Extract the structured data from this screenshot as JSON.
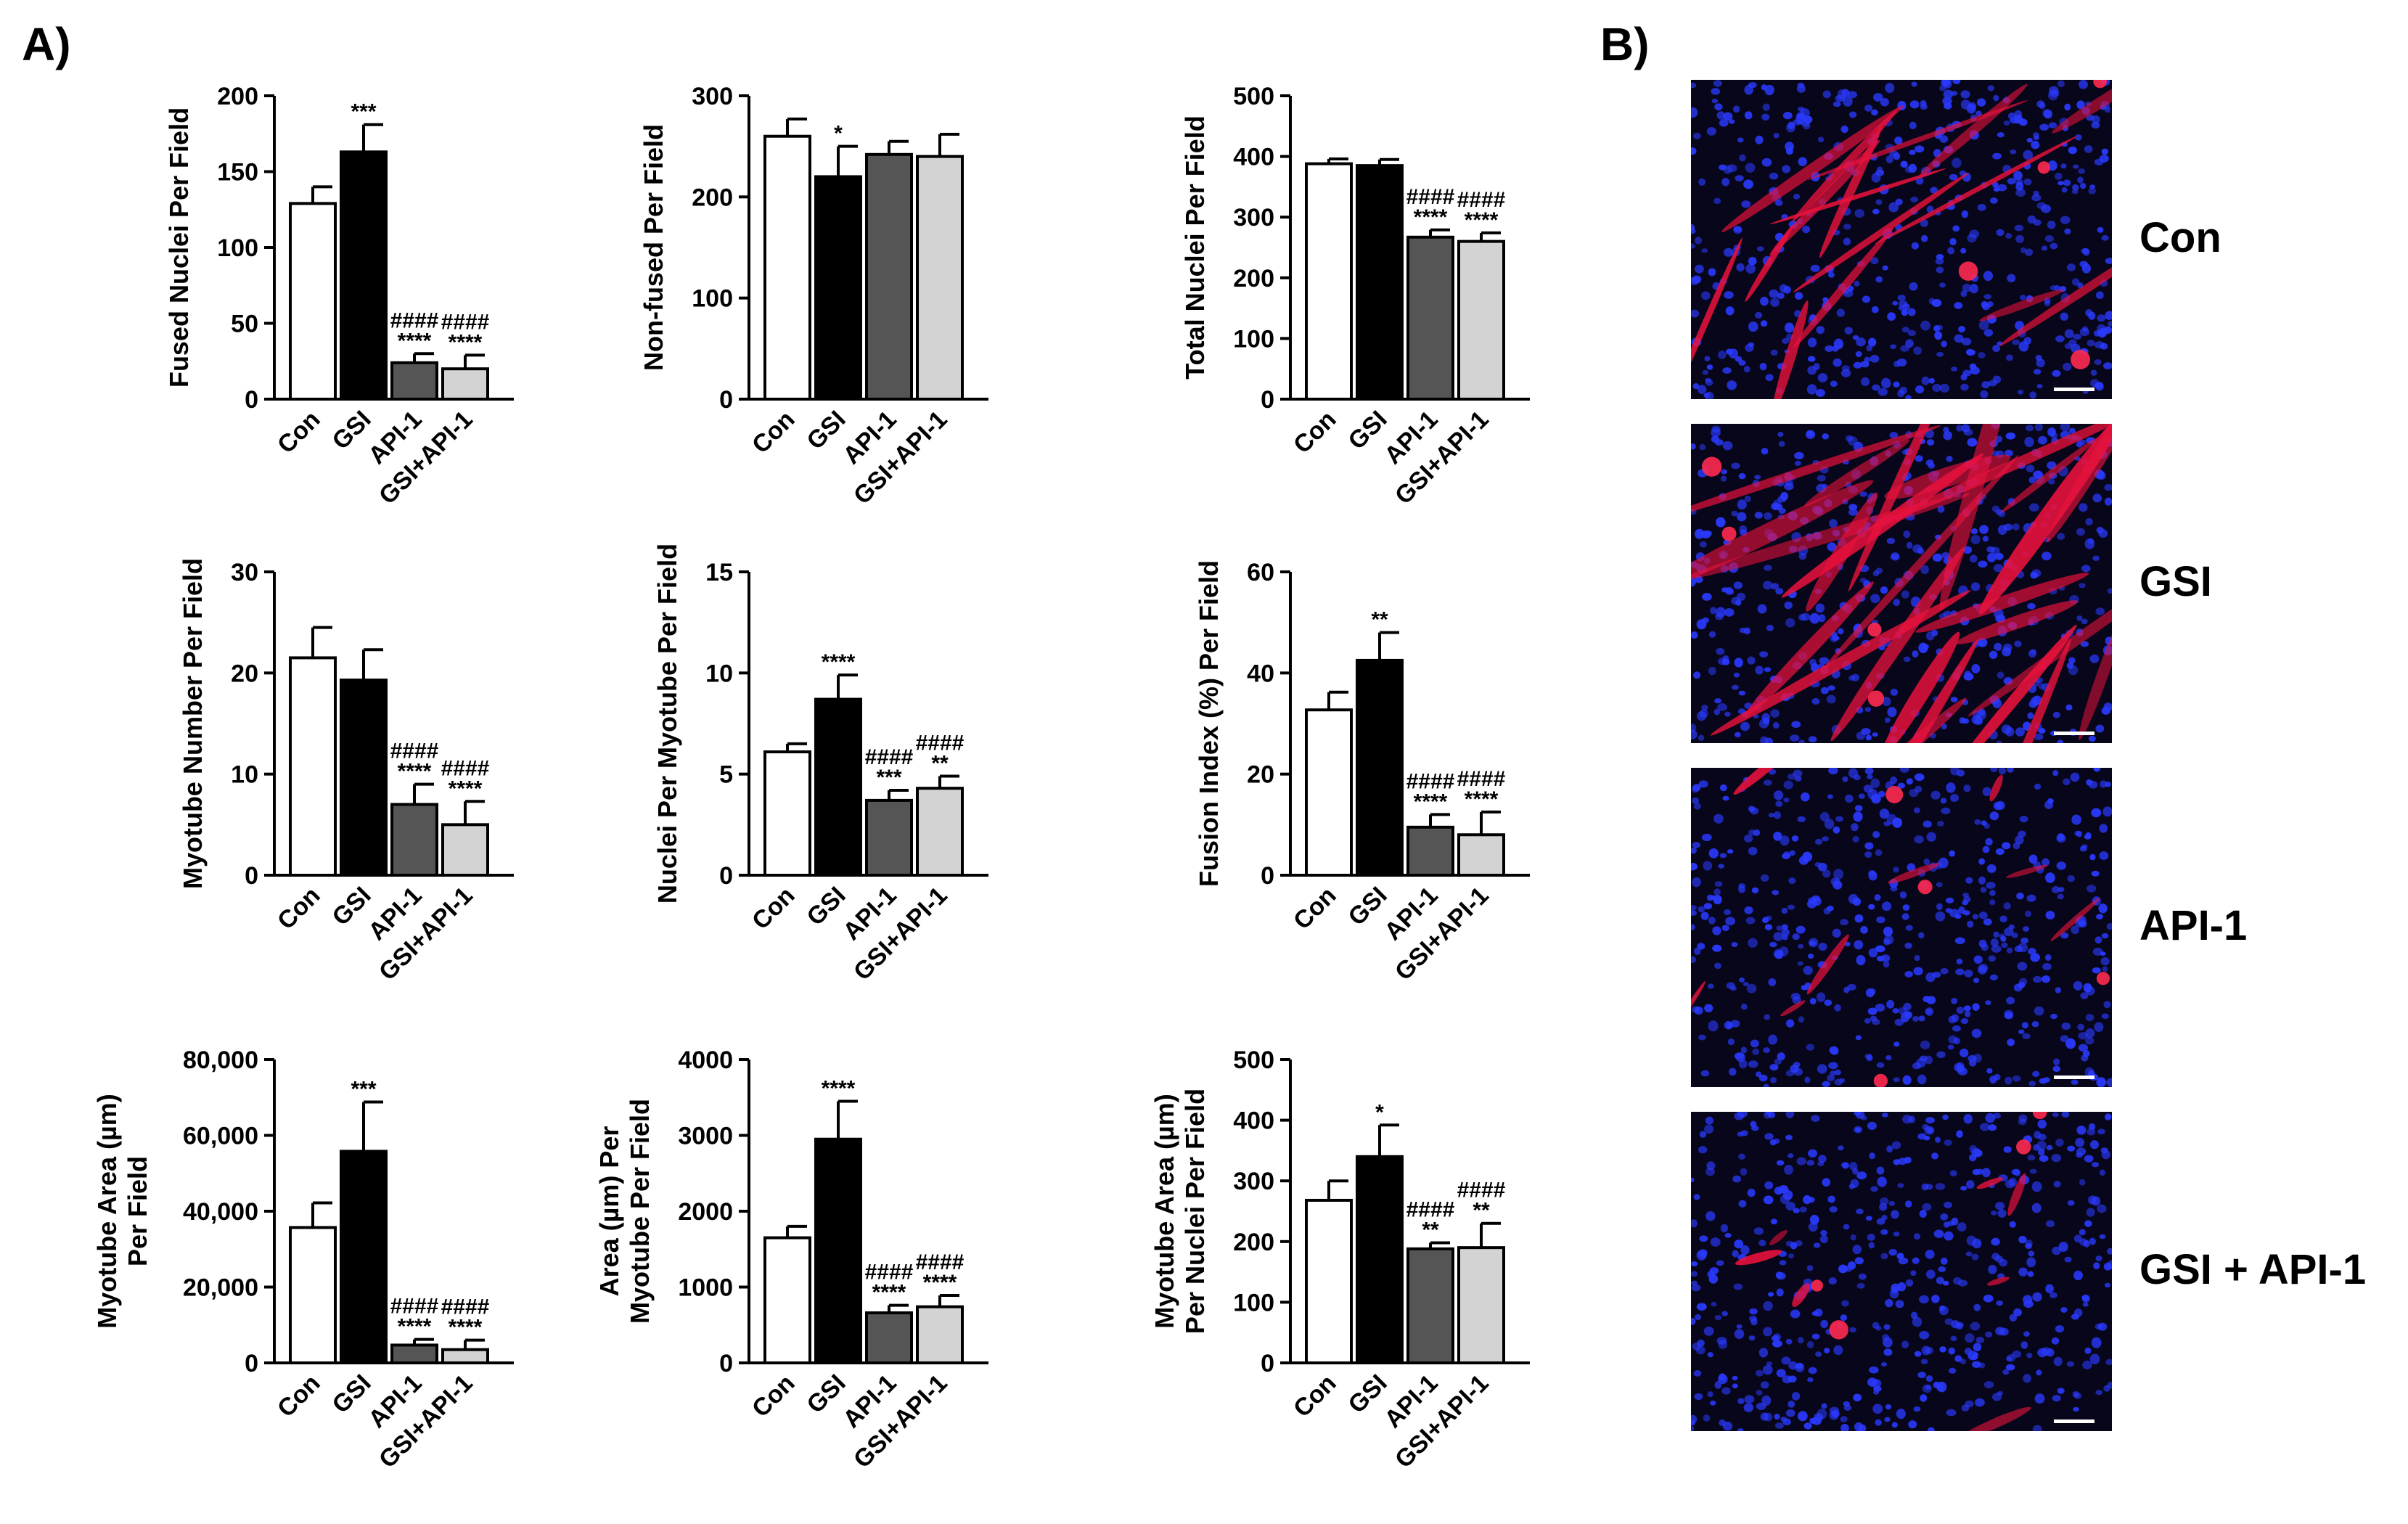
{
  "panel_labels": {
    "a": "A)",
    "b": "B)"
  },
  "chart_data": [
    {
      "type": "bar",
      "ylabel": "Fused Nuclei Per Field",
      "categories": [
        "Con",
        "GSI",
        "API-1",
        "GSI+API-1"
      ],
      "values": [
        129,
        163,
        24,
        20
      ],
      "errors": [
        11,
        18,
        6,
        9
      ],
      "significance_star": [
        "",
        "***",
        "****",
        "****"
      ],
      "significance_hash": [
        "",
        "",
        "####",
        "####"
      ],
      "yticks": [
        "0",
        "50",
        "100",
        "150",
        "200"
      ],
      "ylim": [
        0,
        200
      ]
    },
    {
      "type": "bar",
      "ylabel": "Non-fused Per Field",
      "categories": [
        "Con",
        "GSI",
        "API-1",
        "GSI+API-1"
      ],
      "values": [
        260,
        220,
        242,
        240
      ],
      "errors": [
        17,
        30,
        13,
        22
      ],
      "significance_star": [
        "",
        "*",
        "",
        ""
      ],
      "significance_hash": [
        "",
        "",
        "",
        ""
      ],
      "yticks": [
        "0",
        "100",
        "200",
        "300"
      ],
      "ylim": [
        0,
        300
      ]
    },
    {
      "type": "bar",
      "ylabel": "Total Nuclei Per Field",
      "categories": [
        "Con",
        "GSI",
        "API-1",
        "GSI+API-1"
      ],
      "values": [
        388,
        385,
        267,
        260
      ],
      "errors": [
        8,
        10,
        12,
        14
      ],
      "significance_star": [
        "",
        "",
        "****",
        "****"
      ],
      "significance_hash": [
        "",
        "",
        "####",
        "####"
      ],
      "yticks": [
        "0",
        "100",
        "200",
        "300",
        "400",
        "500"
      ],
      "ylim": [
        0,
        500
      ]
    },
    {
      "type": "bar",
      "ylabel": "Myotube Number Per Field",
      "categories": [
        "Con",
        "GSI",
        "API-1",
        "GSI+API-1"
      ],
      "values": [
        21.5,
        19.3,
        7,
        5
      ],
      "errors": [
        3,
        3,
        2,
        2.3
      ],
      "significance_star": [
        "",
        "",
        "****",
        "****"
      ],
      "significance_hash": [
        "",
        "",
        "####",
        "####"
      ],
      "yticks": [
        "0",
        "10",
        "20",
        "30"
      ],
      "ylim": [
        0,
        30
      ]
    },
    {
      "type": "bar",
      "ylabel": "Nuclei Per Myotube Per Field",
      "categories": [
        "Con",
        "GSI",
        "API-1",
        "GSI+API-1"
      ],
      "values": [
        6.1,
        8.7,
        3.7,
        4.3
      ],
      "errors": [
        0.4,
        1.2,
        0.5,
        0.6
      ],
      "significance_star": [
        "",
        "****",
        "***",
        "**"
      ],
      "significance_hash": [
        "",
        "",
        "####",
        "####"
      ],
      "yticks": [
        "0",
        "5",
        "10",
        "15"
      ],
      "ylim": [
        0,
        15
      ]
    },
    {
      "type": "bar",
      "ylabel": "Fusion Index (%) Per Field",
      "categories": [
        "Con",
        "GSI",
        "API-1",
        "GSI+API-1"
      ],
      "values": [
        32.7,
        42.5,
        9.5,
        8
      ],
      "errors": [
        3.5,
        5.5,
        2.5,
        4.5
      ],
      "significance_star": [
        "",
        "**",
        "****",
        "****"
      ],
      "significance_hash": [
        "",
        "",
        "####",
        "####"
      ],
      "yticks": [
        "0",
        "20",
        "40",
        "60"
      ],
      "ylim": [
        0,
        60
      ]
    },
    {
      "type": "bar",
      "ylabel": [
        "Myotube Area (µm)",
        "Per Field"
      ],
      "categories": [
        "Con",
        "GSI",
        "API-1",
        "GSI+API-1"
      ],
      "values": [
        35700,
        55800,
        4700,
        3500
      ],
      "errors": [
        6500,
        13000,
        1500,
        2500
      ],
      "significance_star": [
        "",
        "***",
        "****",
        "****"
      ],
      "significance_hash": [
        "",
        "",
        "####",
        "####"
      ],
      "yticks": [
        "0",
        "20,000",
        "40,000",
        "60,000",
        "80,000"
      ],
      "ylim": [
        0,
        80000
      ]
    },
    {
      "type": "bar",
      "ylabel": [
        "Area (µm) Per",
        "Myotube Per Field"
      ],
      "categories": [
        "Con",
        "GSI",
        "API-1",
        "GSI+API-1"
      ],
      "values": [
        1650,
        2950,
        660,
        740
      ],
      "errors": [
        150,
        500,
        100,
        150
      ],
      "significance_star": [
        "",
        "****",
        "****",
        "****"
      ],
      "significance_hash": [
        "",
        "",
        "####",
        "####"
      ],
      "yticks": [
        "0",
        "1000",
        "2000",
        "3000",
        "4000"
      ],
      "ylim": [
        0,
        4000
      ]
    },
    {
      "type": "bar",
      "ylabel": [
        "Myotube Area (µm)",
        "Per Nuclei Per Field"
      ],
      "categories": [
        "Con",
        "GSI",
        "API-1",
        "GSI+API-1"
      ],
      "values": [
        268,
        340,
        188,
        190
      ],
      "errors": [
        32,
        52,
        10,
        40
      ],
      "significance_star": [
        "",
        "*",
        "**",
        "**"
      ],
      "significance_hash": [
        "",
        "",
        "####",
        "####"
      ],
      "yticks": [
        "0",
        "100",
        "200",
        "300",
        "400",
        "500"
      ],
      "ylim": [
        0,
        500
      ]
    }
  ],
  "bar_colors": [
    "#ffffff",
    "#000000",
    "#555555",
    "#d3d3d3"
  ],
  "micrographs": {
    "labels": [
      "Con",
      "GSI",
      "API-1",
      "GSI + API-1"
    ],
    "stain_colors": {
      "nuclei": "#2a3aff",
      "myotubes": "#e8123c",
      "background": "#08061a"
    }
  }
}
